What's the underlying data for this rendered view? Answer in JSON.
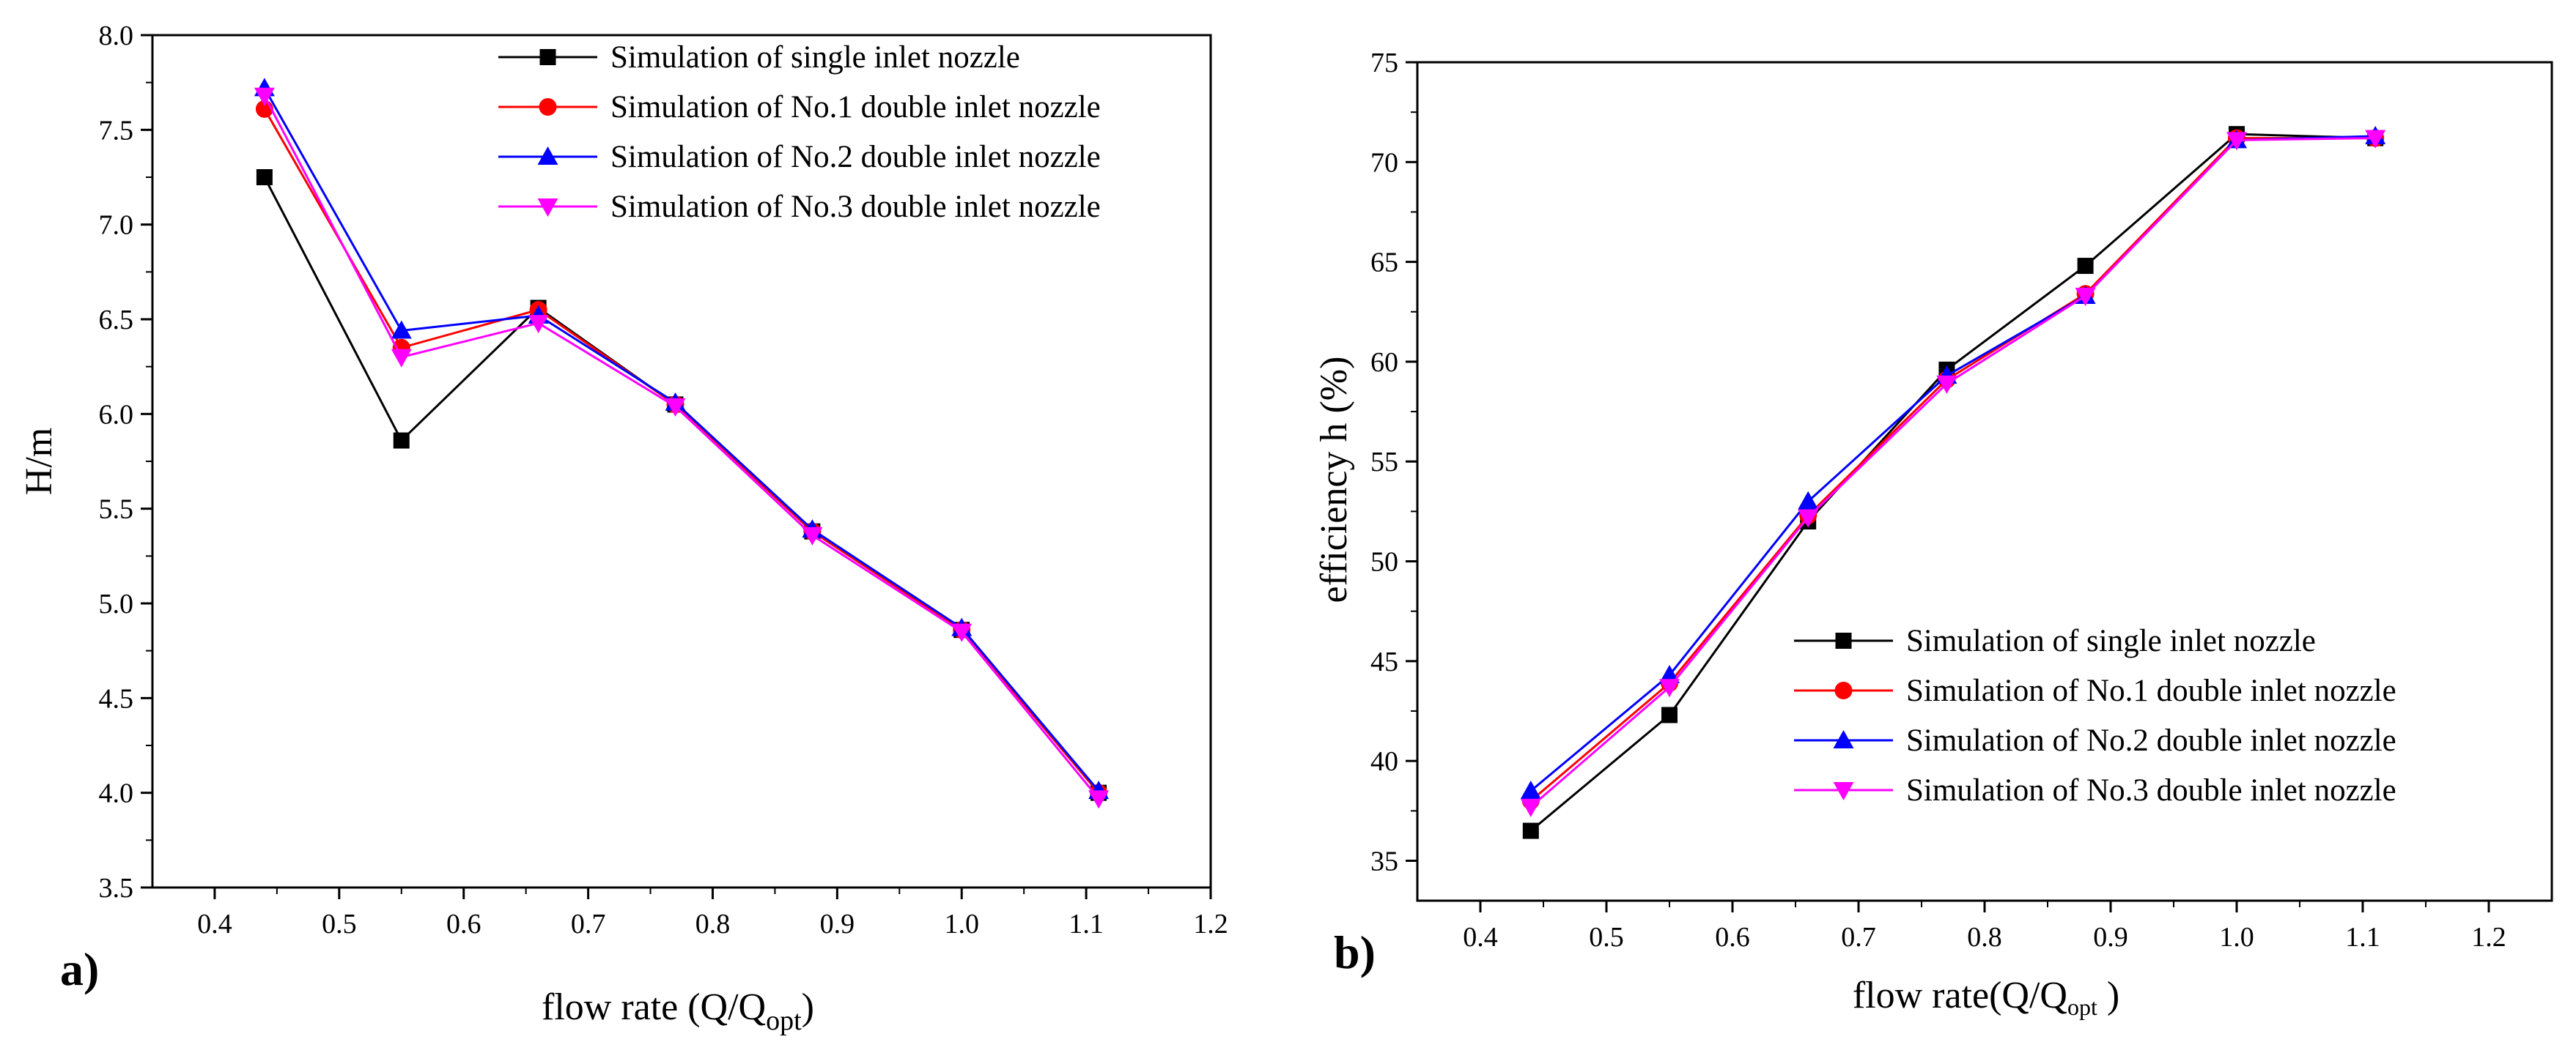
{
  "colors": {
    "single": "#000000",
    "no1": "#ff0000",
    "no2": "#0000ff",
    "no3": "#ff00ff"
  },
  "chart_data": [
    {
      "id": "a",
      "type": "line",
      "panel_label": "a)",
      "xlabel": "flow rate (Q/Q",
      "xlabel_sub": "opt",
      "xlabel_end": ")",
      "ylabel": "H/m",
      "xlim": [
        0.35,
        1.2
      ],
      "ylim": [
        3.5,
        8.0
      ],
      "xticks": [
        "0.4",
        "0.5",
        "0.6",
        "0.7",
        "0.8",
        "0.9",
        "1.0",
        "1.1",
        "1.2"
      ],
      "xtick_values": [
        0.4,
        0.5,
        0.6,
        0.7,
        0.8,
        0.9,
        1.0,
        1.1,
        1.2
      ],
      "yticks": [
        "3.5",
        "4.0",
        "4.5",
        "5.0",
        "5.5",
        "6.0",
        "6.5",
        "7.0",
        "7.5",
        "8.0"
      ],
      "ytick_values": [
        3.5,
        4.0,
        4.5,
        5.0,
        5.5,
        6.0,
        6.5,
        7.0,
        7.5,
        8.0
      ],
      "x": [
        0.44,
        0.55,
        0.66,
        0.77,
        0.88,
        1.0,
        1.11
      ],
      "legend_position": "top-right",
      "series": [
        {
          "key": "single",
          "name": "Simulation of single inlet nozzle",
          "marker": "square",
          "values": [
            7.25,
            5.86,
            6.56,
            6.05,
            5.38,
            4.86,
            4.0
          ]
        },
        {
          "key": "no1",
          "name": "Simulation of No.1 double inlet nozzle",
          "marker": "circle",
          "values": [
            7.61,
            6.35,
            6.55,
            6.05,
            5.38,
            4.86,
            4.0
          ]
        },
        {
          "key": "no2",
          "name": "Simulation of No.2 double inlet nozzle",
          "marker": "triangle-up",
          "values": [
            7.72,
            6.44,
            6.52,
            6.06,
            5.39,
            4.87,
            4.01
          ]
        },
        {
          "key": "no3",
          "name": "Simulation of No.3 double inlet nozzle",
          "marker": "triangle-down",
          "values": [
            7.68,
            6.3,
            6.48,
            6.04,
            5.36,
            4.85,
            3.97
          ]
        }
      ]
    },
    {
      "id": "b",
      "type": "line",
      "panel_label": "b)",
      "xlabel": "flow rate(Q/Q",
      "xlabel_sub": "opt",
      "xlabel_end": " )",
      "ylabel": "efficiency h (%)",
      "xlim": [
        0.35,
        1.25
      ],
      "ylim": [
        33,
        75
      ],
      "xticks": [
        "0.4",
        "0.5",
        "0.6",
        "0.7",
        "0.8",
        "0.9",
        "1.0",
        "1.1",
        "1.2"
      ],
      "xtick_values": [
        0.4,
        0.5,
        0.6,
        0.7,
        0.8,
        0.9,
        1.0,
        1.1,
        1.2
      ],
      "yticks": [
        "35",
        "40",
        "45",
        "50",
        "55",
        "60",
        "65",
        "70",
        "75"
      ],
      "ytick_values": [
        35,
        40,
        45,
        50,
        55,
        60,
        65,
        70,
        75
      ],
      "x": [
        0.44,
        0.55,
        0.66,
        0.77,
        0.88,
        1.0,
        1.11
      ],
      "legend_position": "bottom-right",
      "series": [
        {
          "key": "single",
          "name": "Simulation of single inlet nozzle",
          "marker": "square",
          "values": [
            36.5,
            42.3,
            52.0,
            59.6,
            64.8,
            71.4,
            71.2
          ]
        },
        {
          "key": "no1",
          "name": "Simulation of No.1 double inlet nozzle",
          "marker": "circle",
          "values": [
            38.0,
            43.9,
            52.3,
            59.1,
            63.4,
            71.2,
            71.2
          ]
        },
        {
          "key": "no2",
          "name": "Simulation of No.2 double inlet nozzle",
          "marker": "triangle-up",
          "values": [
            38.5,
            44.3,
            53.0,
            59.3,
            63.3,
            71.1,
            71.3
          ]
        },
        {
          "key": "no3",
          "name": "Simulation of No.3 double inlet nozzle",
          "marker": "triangle-down",
          "values": [
            37.7,
            43.7,
            52.2,
            58.9,
            63.3,
            71.1,
            71.2
          ]
        }
      ]
    }
  ]
}
